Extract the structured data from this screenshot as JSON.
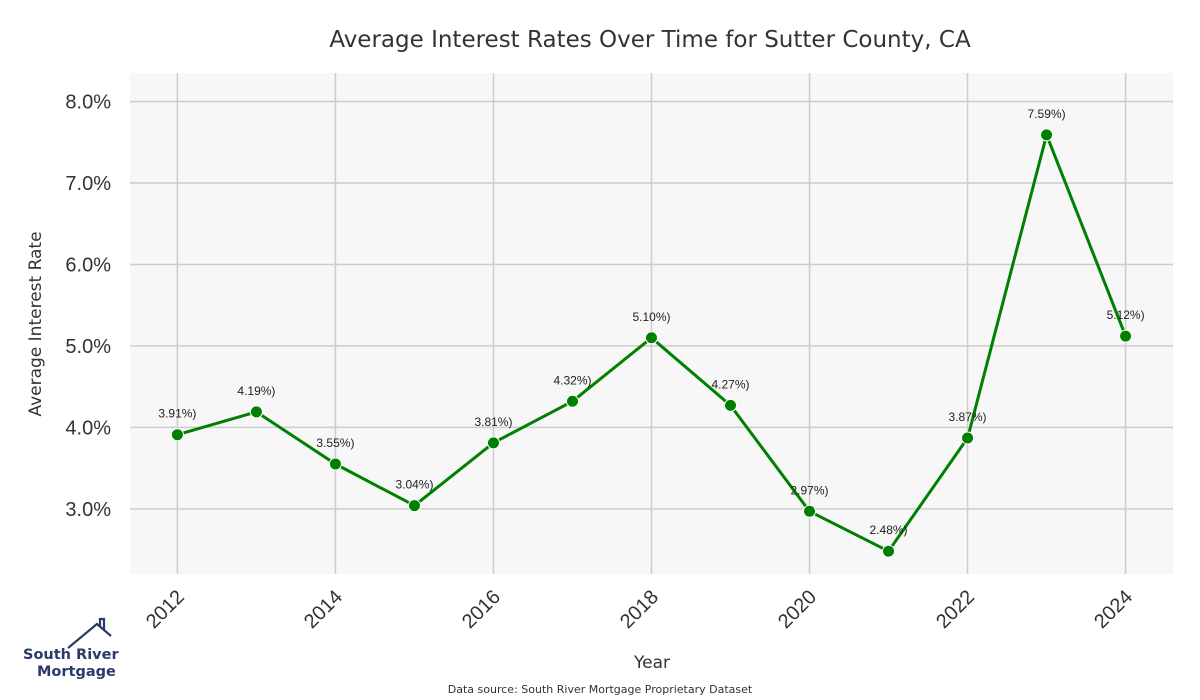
{
  "chart_data": {
    "type": "line",
    "title": "Average Interest Rates Over Time for Sutter County, CA",
    "xlabel": "Year",
    "ylabel": "Average Interest Rate",
    "x": [
      2012,
      2013,
      2014,
      2015,
      2016,
      2017,
      2018,
      2019,
      2020,
      2021,
      2022,
      2023,
      2024
    ],
    "values": [
      3.91,
      4.19,
      3.55,
      3.04,
      3.81,
      4.32,
      5.1,
      4.27,
      2.97,
      2.48,
      3.87,
      7.59,
      5.12
    ],
    "data_labels": [
      "3.91%)",
      "4.19%)",
      "3.55%)",
      "3.04%)",
      "3.81%)",
      "4.32%)",
      "5.10%)",
      "4.27%)",
      "2.97%)",
      "2.48%)",
      "3.87%)",
      "7.59%)",
      "5.12%)"
    ],
    "xticks": [
      "2012",
      "2014",
      "2016",
      "2018",
      "2020",
      "2022",
      "2024"
    ],
    "yticks": [
      "3.0%",
      "4.0%",
      "5.0%",
      "6.0%",
      "7.0%",
      "8.0%"
    ],
    "ytick_values": [
      3,
      4,
      5,
      6,
      7,
      8
    ],
    "ylim": [
      2.2,
      8.35
    ],
    "xlim": [
      2011.4,
      2024.6
    ],
    "grid": true,
    "line_color": "#008000",
    "plot_background": "#f7f7f7",
    "grid_color": "#cccccc"
  },
  "footer": {
    "source": "Data source: South River Mortgage Proprietary Dataset"
  },
  "logo": {
    "line1": "South River",
    "line2": "Mortgage",
    "icon": "house-roof-icon",
    "color": "#2c3a6b"
  }
}
